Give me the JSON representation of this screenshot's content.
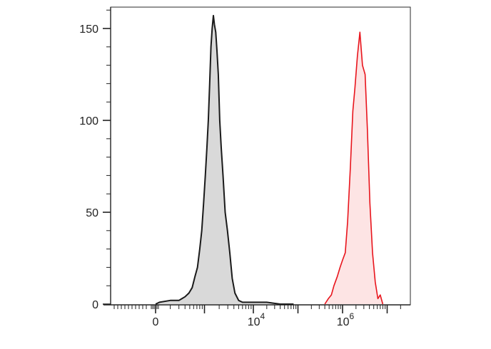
{
  "chart_data": {
    "type": "area",
    "title": "",
    "xlabel": "",
    "ylabel": "",
    "x_scale": "biexponential",
    "x_ticks": [
      {
        "value": 0,
        "base": "0",
        "exponent": ""
      },
      {
        "value": 10000,
        "base": "10",
        "exponent": "4"
      },
      {
        "value": 1000000,
        "base": "10",
        "exponent": "6"
      }
    ],
    "ylim": [
      0,
      165
    ],
    "y_ticks": [
      {
        "value": 0,
        "label": "0"
      },
      {
        "value": 50,
        "label": "50"
      },
      {
        "value": 100,
        "label": "100"
      },
      {
        "value": 150,
        "label": "150"
      }
    ],
    "grid": false,
    "legend": "none",
    "series": [
      {
        "color": "#1a1a1a",
        "fill": "#d9d9d9",
        "x": [
          80,
          120,
          200,
          300,
          400,
          480,
          560,
          640,
          720,
          800,
          880,
          960,
          1040,
          1120,
          1200,
          1280,
          1360,
          1440,
          1520,
          1600,
          1700,
          1800,
          1920,
          2050,
          2200,
          2400,
          2650,
          2950,
          3300,
          3700,
          4200,
          5000,
          6000,
          8000,
          12000,
          20000,
          40000,
          80000
        ],
        "y": [
          0,
          1,
          2,
          2,
          4,
          6,
          9,
          15,
          20,
          30,
          40,
          55,
          70,
          85,
          100,
          120,
          140,
          150,
          157,
          152,
          148,
          138,
          125,
          100,
          85,
          70,
          50,
          40,
          28,
          14,
          6,
          2,
          1,
          1,
          1,
          1,
          0,
          0
        ]
      },
      {
        "color": "#e8141c",
        "fill": "#fde4e4",
        "x": [
          400000,
          480000,
          560000,
          640000,
          760000,
          880000,
          1000000,
          1150000,
          1300000,
          1500000,
          1700000,
          1900000,
          2150000,
          2450000,
          2800000,
          3200000,
          3600000,
          4100000,
          4700000,
          5400000,
          6200000,
          7000000,
          8000000
        ],
        "y": [
          0,
          3,
          5,
          10,
          15,
          20,
          24,
          28,
          45,
          75,
          105,
          118,
          135,
          148,
          130,
          125,
          95,
          55,
          28,
          12,
          3,
          5,
          0
        ]
      }
    ]
  }
}
